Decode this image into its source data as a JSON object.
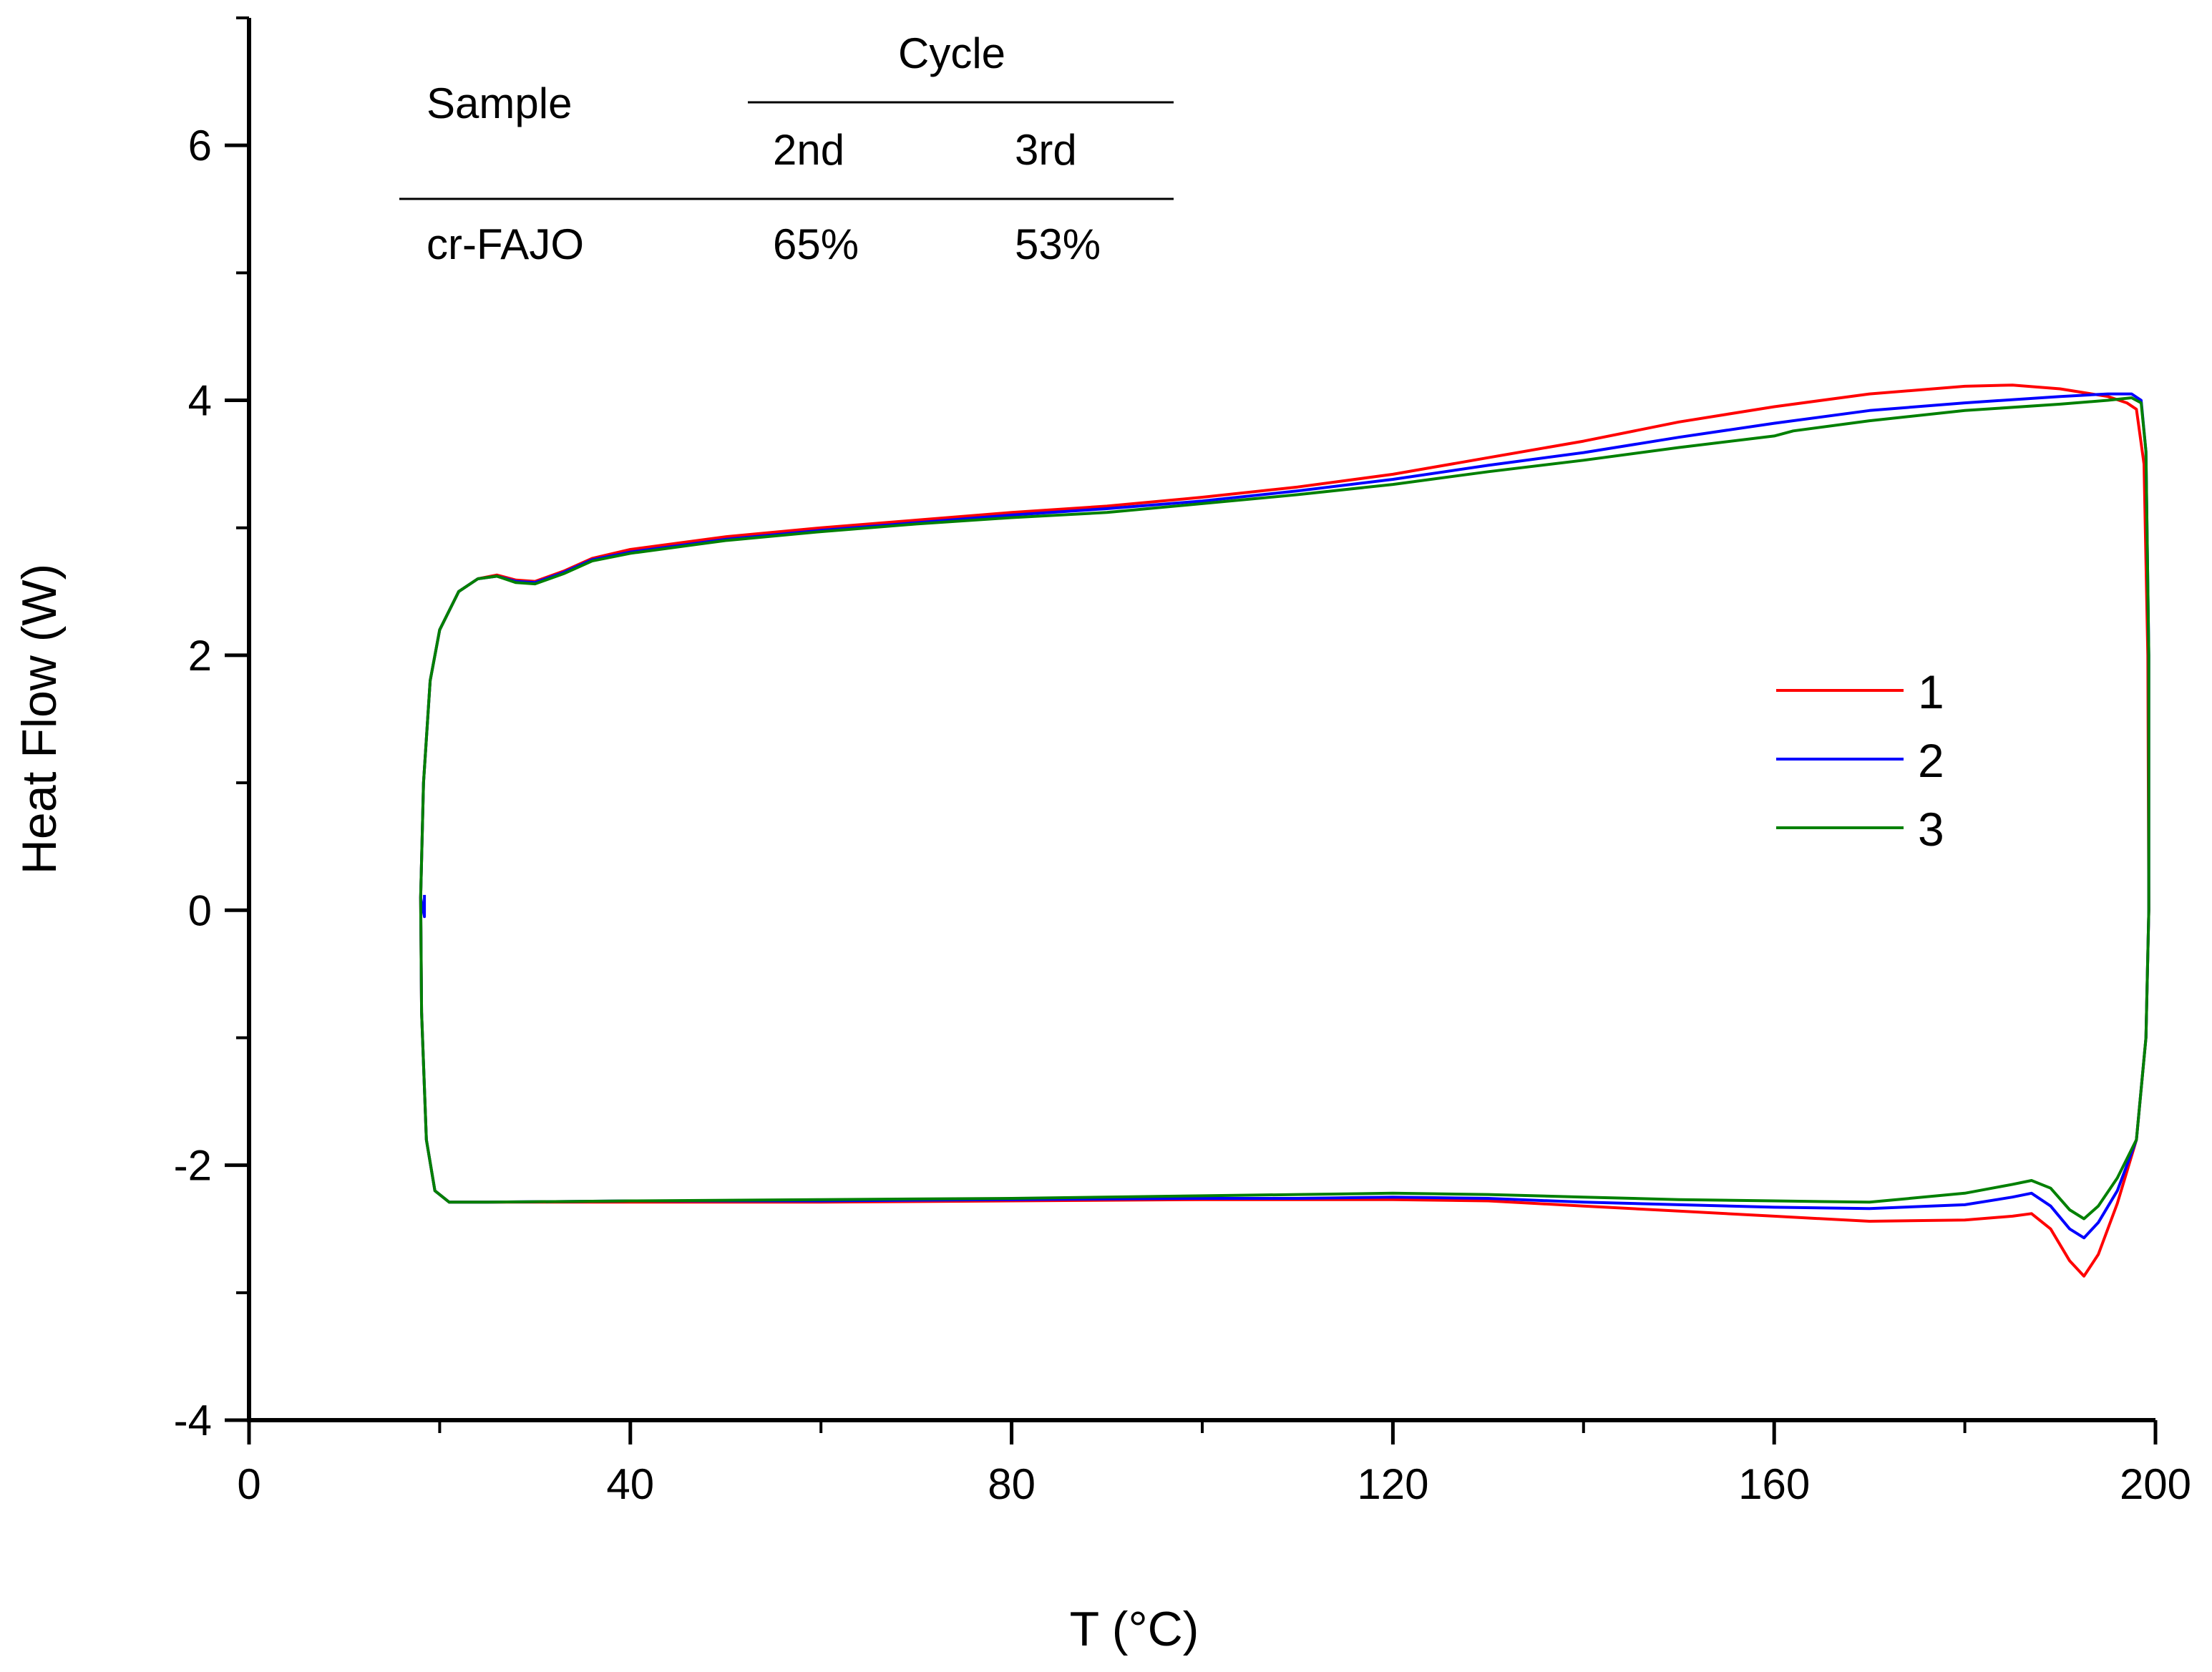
{
  "chart_data": {
    "type": "line",
    "title": "",
    "xlabel": "T (°C)",
    "ylabel": "Heat Flow (W)",
    "xlim": [
      0,
      200
    ],
    "ylim": [
      -4,
      7
    ],
    "grid": false,
    "x_ticks": [
      0,
      40,
      80,
      120,
      160,
      200
    ],
    "x_tick_labels": [
      "0",
      "40",
      "80",
      "120",
      "160",
      "200"
    ],
    "y_ticks": [
      -4,
      -2,
      0,
      2,
      4,
      6
    ],
    "y_tick_labels": [
      "-4",
      "-2",
      "0",
      "2",
      "4",
      "6"
    ],
    "legend_position": "center-right",
    "series": [
      {
        "name": "1",
        "color": "#ff0000",
        "points": [
          [
            18,
            0.1
          ],
          [
            18.3,
            1
          ],
          [
            19,
            1.8
          ],
          [
            20,
            2.2
          ],
          [
            22,
            2.5
          ],
          [
            24,
            2.6
          ],
          [
            26,
            2.63
          ],
          [
            28,
            2.59
          ],
          [
            30,
            2.58
          ],
          [
            33,
            2.66
          ],
          [
            36,
            2.76
          ],
          [
            40,
            2.83
          ],
          [
            50,
            2.93
          ],
          [
            60,
            3.0
          ],
          [
            70,
            3.06
          ],
          [
            80,
            3.12
          ],
          [
            90,
            3.17
          ],
          [
            100,
            3.24
          ],
          [
            110,
            3.32
          ],
          [
            120,
            3.42
          ],
          [
            130,
            3.55
          ],
          [
            140,
            3.68
          ],
          [
            150,
            3.83
          ],
          [
            160,
            3.95
          ],
          [
            170,
            4.05
          ],
          [
            180,
            4.11
          ],
          [
            185,
            4.12
          ],
          [
            190,
            4.09
          ],
          [
            195,
            4.03
          ],
          [
            197,
            3.98
          ],
          [
            198,
            3.93
          ],
          [
            198.8,
            3.5
          ],
          [
            199.2,
            2
          ],
          [
            199.3,
            0
          ],
          [
            199,
            -1
          ],
          [
            198,
            -1.8
          ],
          [
            196,
            -2.3
          ],
          [
            194,
            -2.7
          ],
          [
            192.5,
            -2.87
          ],
          [
            191,
            -2.75
          ],
          [
            189,
            -2.5
          ],
          [
            187,
            -2.38
          ],
          [
            185,
            -2.4
          ],
          [
            180,
            -2.43
          ],
          [
            170,
            -2.44
          ],
          [
            160,
            -2.4
          ],
          [
            150,
            -2.36
          ],
          [
            140,
            -2.32
          ],
          [
            130,
            -2.28
          ],
          [
            120,
            -2.27
          ],
          [
            110,
            -2.27
          ],
          [
            100,
            -2.27
          ],
          [
            80,
            -2.28
          ],
          [
            60,
            -2.29
          ],
          [
            40,
            -2.29
          ],
          [
            25,
            -2.29
          ],
          [
            21,
            -2.29
          ],
          [
            19.5,
            -2.2
          ],
          [
            18.6,
            -1.8
          ],
          [
            18.1,
            -0.8
          ],
          [
            18,
            0.1
          ]
        ]
      },
      {
        "name": "2",
        "color": "#0000ff",
        "points": [
          [
            18,
            0.1
          ],
          [
            18.3,
            1
          ],
          [
            19,
            1.8
          ],
          [
            20,
            2.2
          ],
          [
            22,
            2.5
          ],
          [
            24,
            2.6
          ],
          [
            26,
            2.62
          ],
          [
            28,
            2.58
          ],
          [
            30,
            2.57
          ],
          [
            33,
            2.65
          ],
          [
            36,
            2.75
          ],
          [
            40,
            2.81
          ],
          [
            50,
            2.91
          ],
          [
            60,
            2.98
          ],
          [
            70,
            3.04
          ],
          [
            80,
            3.1
          ],
          [
            90,
            3.15
          ],
          [
            100,
            3.21
          ],
          [
            110,
            3.29
          ],
          [
            120,
            3.38
          ],
          [
            130,
            3.49
          ],
          [
            140,
            3.59
          ],
          [
            150,
            3.71
          ],
          [
            160,
            3.82
          ],
          [
            170,
            3.92
          ],
          [
            180,
            3.98
          ],
          [
            190,
            4.03
          ],
          [
            195,
            4.05
          ],
          [
            197.5,
            4.05
          ],
          [
            198.5,
            4.0
          ],
          [
            199,
            3.6
          ],
          [
            199.3,
            2
          ],
          [
            199.3,
            0
          ],
          [
            199,
            -1
          ],
          [
            198,
            -1.8
          ],
          [
            196,
            -2.2
          ],
          [
            194,
            -2.45
          ],
          [
            192.5,
            -2.57
          ],
          [
            191,
            -2.5
          ],
          [
            189,
            -2.32
          ],
          [
            187,
            -2.22
          ],
          [
            185,
            -2.25
          ],
          [
            180,
            -2.31
          ],
          [
            170,
            -2.34
          ],
          [
            160,
            -2.33
          ],
          [
            150,
            -2.31
          ],
          [
            140,
            -2.29
          ],
          [
            130,
            -2.26
          ],
          [
            120,
            -2.25
          ],
          [
            110,
            -2.26
          ],
          [
            100,
            -2.26
          ],
          [
            80,
            -2.27
          ],
          [
            60,
            -2.28
          ],
          [
            40,
            -2.28
          ],
          [
            25,
            -2.29
          ],
          [
            21,
            -2.29
          ],
          [
            19.5,
            -2.2
          ],
          [
            18.6,
            -1.8
          ],
          [
            18.1,
            -0.8
          ],
          [
            18,
            0.1
          ],
          [
            18.4,
            -0.05
          ],
          [
            18.4,
            0.12
          ]
        ]
      },
      {
        "name": "3",
        "color": "#008000",
        "points": [
          [
            18,
            0.1
          ],
          [
            18.3,
            1
          ],
          [
            19,
            1.8
          ],
          [
            20,
            2.2
          ],
          [
            22,
            2.5
          ],
          [
            24,
            2.6
          ],
          [
            26,
            2.62
          ],
          [
            28,
            2.57
          ],
          [
            30,
            2.56
          ],
          [
            33,
            2.64
          ],
          [
            36,
            2.74
          ],
          [
            40,
            2.8
          ],
          [
            50,
            2.9
          ],
          [
            60,
            2.97
          ],
          [
            70,
            3.03
          ],
          [
            80,
            3.08
          ],
          [
            90,
            3.12
          ],
          [
            100,
            3.19
          ],
          [
            110,
            3.26
          ],
          [
            120,
            3.34
          ],
          [
            130,
            3.44
          ],
          [
            140,
            3.53
          ],
          [
            150,
            3.63
          ],
          [
            160,
            3.72
          ],
          [
            162,
            3.76
          ],
          [
            170,
            3.84
          ],
          [
            180,
            3.92
          ],
          [
            190,
            3.97
          ],
          [
            195,
            4.0
          ],
          [
            197.5,
            4.02
          ],
          [
            198.5,
            3.98
          ],
          [
            199,
            3.6
          ],
          [
            199.3,
            2
          ],
          [
            199.3,
            0
          ],
          [
            199,
            -1
          ],
          [
            198,
            -1.8
          ],
          [
            196,
            -2.1
          ],
          [
            194,
            -2.32
          ],
          [
            192.5,
            -2.42
          ],
          [
            191,
            -2.35
          ],
          [
            189,
            -2.18
          ],
          [
            187,
            -2.12
          ],
          [
            185,
            -2.15
          ],
          [
            180,
            -2.22
          ],
          [
            170,
            -2.29
          ],
          [
            160,
            -2.28
          ],
          [
            150,
            -2.27
          ],
          [
            140,
            -2.25
          ],
          [
            130,
            -2.23
          ],
          [
            120,
            -2.22
          ],
          [
            110,
            -2.23
          ],
          [
            100,
            -2.24
          ],
          [
            80,
            -2.26
          ],
          [
            60,
            -2.27
          ],
          [
            40,
            -2.28
          ],
          [
            25,
            -2.29
          ],
          [
            21,
            -2.29
          ],
          [
            19.5,
            -2.2
          ],
          [
            18.6,
            -1.8
          ],
          [
            18.1,
            -0.8
          ],
          [
            18,
            0.1
          ]
        ]
      }
    ]
  },
  "inset_table": {
    "sample_header": "Sample",
    "group_header": "Cycle",
    "col_2nd": "2nd",
    "col_3rd": "3rd",
    "rows": [
      {
        "sample": "cr-FAJO",
        "v2": "65%",
        "v3": "53%"
      }
    ]
  }
}
